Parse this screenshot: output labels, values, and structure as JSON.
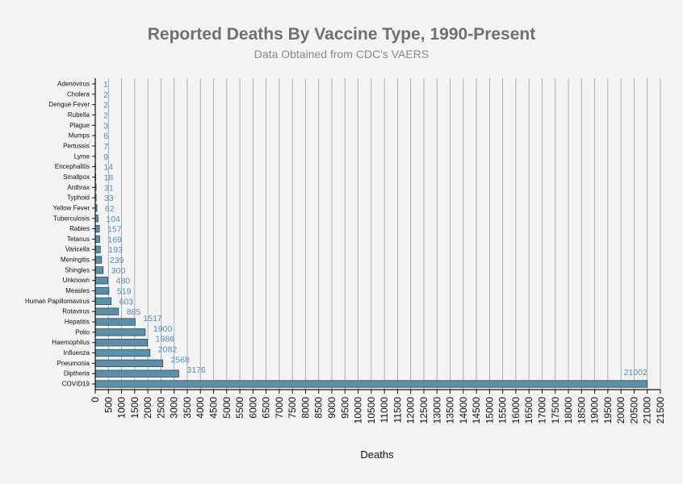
{
  "chart_data": {
    "type": "bar",
    "orientation": "horizontal",
    "title": "Reported Deaths By Vaccine Type, 1990-Present",
    "subtitle": "Data Obtained from CDC's VAERS",
    "xlabel": "Deaths",
    "ylabel": "",
    "xlim": [
      0,
      21500
    ],
    "x_tick_step": 500,
    "grid": "vertical",
    "bar_color": "#5b8fa8",
    "label_color": "#5b8fa8",
    "title_color": "#707070",
    "categories": [
      "Adenovirus",
      "Cholera",
      "Dengue Fever",
      "Rubella",
      "Plague",
      "Mumps",
      "Pertussis",
      "Lyme",
      "Encephalitis",
      "Smallpox",
      "Anthrax",
      "Typhoid",
      "Yellow Fever",
      "Tuberculosis",
      "Rabies",
      "Tetanus",
      "Varicella",
      "Meningitis",
      "Shingles",
      "Unknown",
      "Measles",
      "Human Papillomavirus",
      "Rotavirus",
      "Hepatitis",
      "Polio",
      "Haemophilus",
      "Influenza",
      "Pneumonia",
      "Diptheria",
      "COVID19"
    ],
    "values": [
      1,
      2,
      2,
      2,
      3,
      6,
      7,
      9,
      14,
      18,
      31,
      33,
      62,
      104,
      157,
      169,
      193,
      239,
      300,
      480,
      519,
      603,
      885,
      1517,
      1900,
      1986,
      2082,
      2568,
      3176,
      21002
    ]
  }
}
